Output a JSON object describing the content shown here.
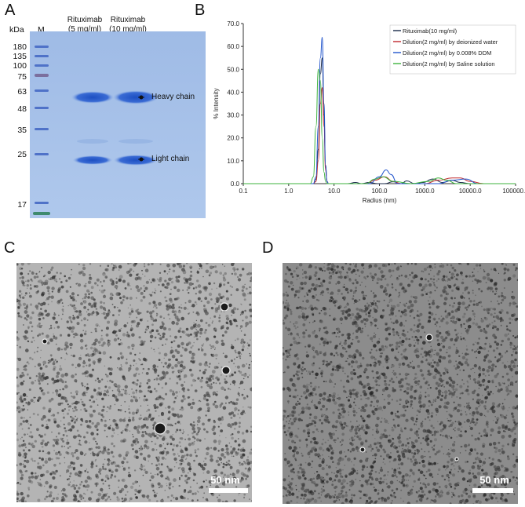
{
  "panels": {
    "a": "A",
    "b": "B",
    "c": "C",
    "d": "D"
  },
  "gel": {
    "unit": "kDa",
    "marker_lane": "M",
    "lane1": {
      "name": "Rituximab",
      "conc": "(5 mg/ml)"
    },
    "lane2": {
      "name": "Rituximab",
      "conc": "(10 mg/ml)"
    },
    "markers": [
      "180",
      "135",
      "100",
      "75",
      "63",
      "48",
      "35",
      "25",
      "17"
    ],
    "heavy_chain": "Heavy chain",
    "light_chain": "Light chain",
    "colors": {
      "background": "#a8c2e8",
      "band": "#2a5fc7",
      "marker": "#5b79c9"
    }
  },
  "chart_data": {
    "type": "line",
    "xscale": "log",
    "xlabel": "Radius (nm)",
    "ylabel": "% Intensity",
    "xlim": [
      0.1,
      100000.0
    ],
    "ylim": [
      0.0,
      70.0
    ],
    "xticks": [
      "0.1",
      "1.0",
      "10.0",
      "100.0",
      "1000.0",
      "10000.0",
      "100000.0"
    ],
    "yticks": [
      "0.0",
      "10.0",
      "20.0",
      "30.0",
      "40.0",
      "50.0",
      "60.0",
      "70.0"
    ],
    "legend_position": "top-right",
    "series": [
      {
        "name": "Rituximab(10 mg/ml)",
        "color": "#1a2a4a",
        "x": [
          3.5,
          4.0,
          4.5,
          5.0,
          5.5,
          6.0,
          6.5,
          7.0,
          7.5,
          20,
          30,
          40,
          60,
          90,
          130,
          200,
          300,
          400,
          600,
          900,
          1500,
          2500,
          4000,
          6000,
          10000
        ],
        "y": [
          0,
          2,
          15,
          48,
          55,
          30,
          8,
          1,
          0,
          0,
          0.5,
          0,
          0.5,
          0,
          0,
          0.8,
          0,
          1.2,
          0,
          0.5,
          2,
          0.5,
          1.5,
          0.5,
          0
        ]
      },
      {
        "name": "Dilution(2 mg/ml) by deionized water",
        "color": "#c0282d",
        "x": [
          3.5,
          4.0,
          4.5,
          5.0,
          5.5,
          6.0,
          6.5,
          7.0,
          7.5,
          50,
          80,
          130,
          200,
          300,
          1000,
          2000,
          4000,
          6000,
          10000,
          20000
        ],
        "y": [
          0,
          1,
          10,
          35,
          42,
          25,
          6,
          1,
          0,
          0,
          1.5,
          3,
          1,
          0,
          0,
          1.5,
          2.5,
          2.5,
          1,
          0
        ]
      },
      {
        "name": "Dilution(2 mg/ml) by 0.008% DDM",
        "color": "#2255cc",
        "x": [
          3.5,
          4.0,
          4.5,
          5.0,
          5.5,
          6.0,
          6.5,
          7.0,
          7.5,
          60,
          100,
          140,
          180,
          250,
          2000,
          4000,
          8000,
          15000
        ],
        "y": [
          0,
          3,
          25,
          55,
          64,
          35,
          8,
          1,
          0,
          0,
          3,
          6,
          4,
          0,
          0,
          1.5,
          2,
          0
        ]
      },
      {
        "name": "Dilution(2 mg/ml) by Saline solution",
        "color": "#3db33d",
        "x": [
          3.0,
          3.5,
          4.0,
          4.5,
          5.0,
          5.5,
          6.0,
          6.5,
          7.0,
          50,
          80,
          120,
          200,
          500,
          1200,
          2000,
          3000,
          5000
        ],
        "y": [
          0,
          3,
          25,
          50,
          45,
          20,
          5,
          1,
          0,
          0,
          2,
          3,
          1,
          0,
          1,
          2.5,
          1.5,
          0
        ]
      }
    ]
  },
  "tem_c": {
    "scale_label": "50 nm",
    "background": "#b4b4b4"
  },
  "tem_d": {
    "scale_label": "50 nm",
    "background": "#8c8c8c"
  }
}
